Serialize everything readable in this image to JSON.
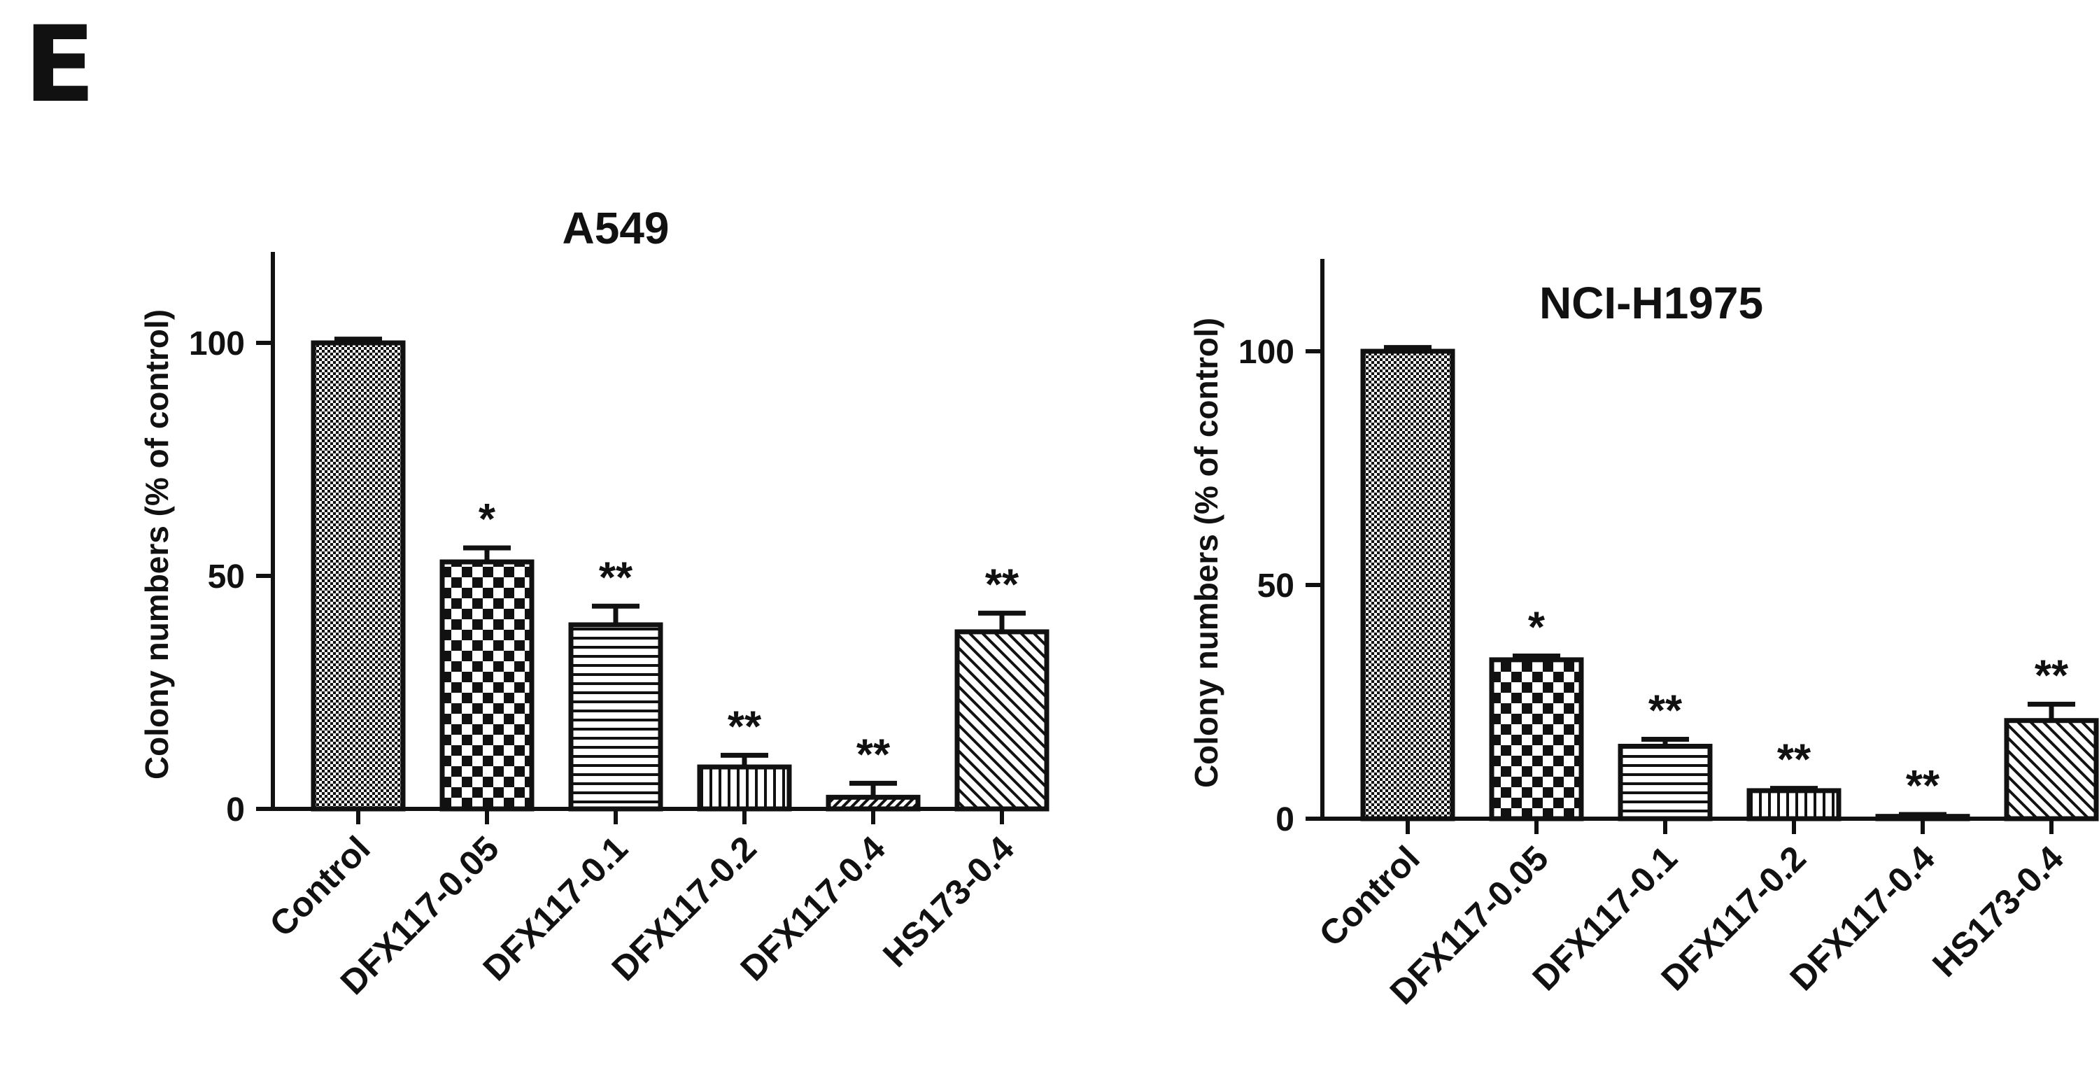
{
  "panel_label": "E",
  "chart_data": [
    {
      "type": "bar",
      "title": "A549",
      "ylabel": "Colony numbers (% of control)",
      "xlabel": "",
      "ylim": [
        0,
        120
      ],
      "yticks": [
        0,
        50,
        100
      ],
      "grid": false,
      "categories": [
        "Control",
        "DFX117-0.05",
        "DFX117-0.1",
        "DFX117-0.2",
        "DFX117-0.4",
        "HS173-0.4"
      ],
      "values": [
        100,
        53,
        39.5,
        9,
        2.5,
        38
      ],
      "errors": [
        0.8,
        3,
        4,
        2.5,
        3,
        4
      ],
      "significance": [
        "",
        "*",
        "**",
        "**",
        "**",
        "**"
      ],
      "patterns": [
        "fine-check",
        "check",
        "horizontal",
        "vertical",
        "diagonal-dense",
        "diagonal"
      ]
    },
    {
      "type": "bar",
      "title": "NCI-H1975",
      "ylabel": "Colony numbers (% of control)",
      "xlabel": "",
      "ylim": [
        0,
        120
      ],
      "yticks": [
        0,
        50,
        100
      ],
      "grid": false,
      "categories": [
        "Control",
        "DFX117-0.05",
        "DFX117-0.1",
        "DFX117-0.2",
        "DFX117-0.4",
        "HS173-0.4"
      ],
      "values": [
        100,
        34,
        15.5,
        6,
        0.5,
        21
      ],
      "errors": [
        0.8,
        0.8,
        1.5,
        0.5,
        0.4,
        3.5
      ],
      "significance": [
        "",
        "*",
        "**",
        "**",
        "**",
        "**"
      ],
      "patterns": [
        "fine-check",
        "check",
        "horizontal",
        "vertical",
        "diagonal-dense",
        "diagonal"
      ]
    }
  ]
}
